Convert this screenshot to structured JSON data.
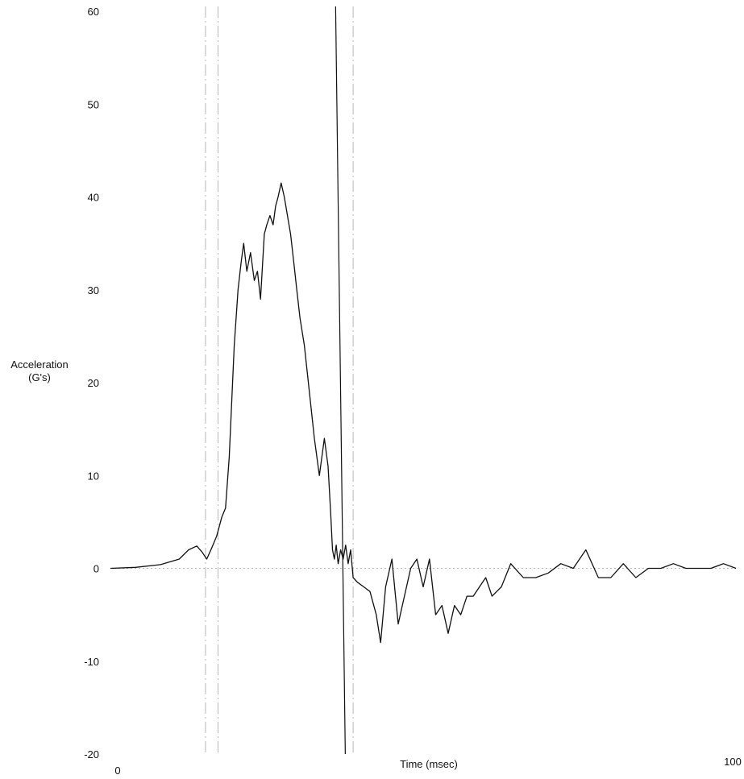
{
  "chart_data": {
    "type": "line",
    "title": "",
    "xlabel": "Time (msec)",
    "ylabel": [
      "Acceleration",
      "(G's)"
    ],
    "xlim": [
      0,
      100
    ],
    "ylim": [
      -20,
      60
    ],
    "y_ticks": [
      60,
      50,
      40,
      30,
      20,
      10,
      0,
      -10,
      -20
    ],
    "x_tick_labels": [
      "0",
      "100"
    ],
    "grid": false,
    "legend": "none",
    "colors": {
      "line": "#111111",
      "text": "#111111",
      "faint_lines": "#b8b8b8"
    },
    "reference_lines": [
      {
        "orientation": "vertical",
        "x": 36,
        "style": "solid",
        "description": "dark vertical marker"
      },
      {
        "orientation": "vertical",
        "x": 15.2,
        "style": "dash-dot"
      },
      {
        "orientation": "vertical",
        "x": 17.2,
        "style": "dash-dot"
      },
      {
        "orientation": "vertical",
        "x": 38.8,
        "style": "dash-dot"
      },
      {
        "orientation": "horizontal",
        "y": 0,
        "style": "dotted"
      }
    ],
    "series": [
      {
        "name": "",
        "x": [
          0,
          4,
          8,
          11,
          12.5,
          13.8,
          14.6,
          15.4,
          16.2,
          17.0,
          17.8,
          18.4,
          19.0,
          19.8,
          20.4,
          20.9,
          21.3,
          21.8,
          22.4,
          23.0,
          23.5,
          24.0,
          24.6,
          25.0,
          25.5,
          26.0,
          26.4,
          26.8,
          27.3,
          27.8,
          28.3,
          28.8,
          29.3,
          29.8,
          30.3,
          31.0,
          31.8,
          32.6,
          33.4,
          34.2,
          34.8,
          35.2,
          35.5,
          35.8,
          36.1,
          36.4,
          36.8,
          37.2,
          37.6,
          38.0,
          38.4,
          38.8,
          39.5,
          40.5,
          41.5,
          42.5,
          43.2,
          44.0,
          45.0,
          46.0,
          47.0,
          48.0,
          49.0,
          50.0,
          51.0,
          52.0,
          53.0,
          54.0,
          55.0,
          56.0,
          57.0,
          58.0,
          59.0,
          60.0,
          61.0,
          62.5,
          64.0,
          66.0,
          68.0,
          70.0,
          72.0,
          74.0,
          76.0,
          78.0,
          80.0,
          82.0,
          84.0,
          86.0,
          88.0,
          90.0,
          92.0,
          94.0,
          96.0,
          98.0,
          100.0
        ],
        "y": [
          0,
          0.1,
          0.4,
          1.0,
          2.0,
          2.4,
          1.8,
          1.0,
          2.2,
          3.5,
          5.5,
          6.5,
          12,
          24,
          30,
          33,
          35,
          32,
          34,
          31,
          32,
          29,
          36,
          37,
          38,
          37,
          39,
          40,
          41.5,
          40,
          38,
          36,
          33,
          30,
          27,
          24,
          19,
          14,
          10,
          14,
          11,
          6,
          2,
          1,
          2.5,
          0.5,
          2,
          1,
          2.5,
          0.5,
          2,
          -1,
          -1.5,
          -2,
          -2.5,
          -5,
          -8,
          -2,
          1,
          -6,
          -3,
          0,
          1,
          -2,
          1,
          -5,
          -4,
          -7,
          -4,
          -5,
          -3,
          -3,
          -2,
          -1,
          -3,
          -2,
          0.5,
          -1,
          -1,
          -0.5,
          0.5,
          0,
          2,
          -1,
          -1,
          0.5,
          -1,
          0,
          0,
          0.5,
          0,
          0,
          0,
          0.5,
          0
        ]
      }
    ]
  }
}
